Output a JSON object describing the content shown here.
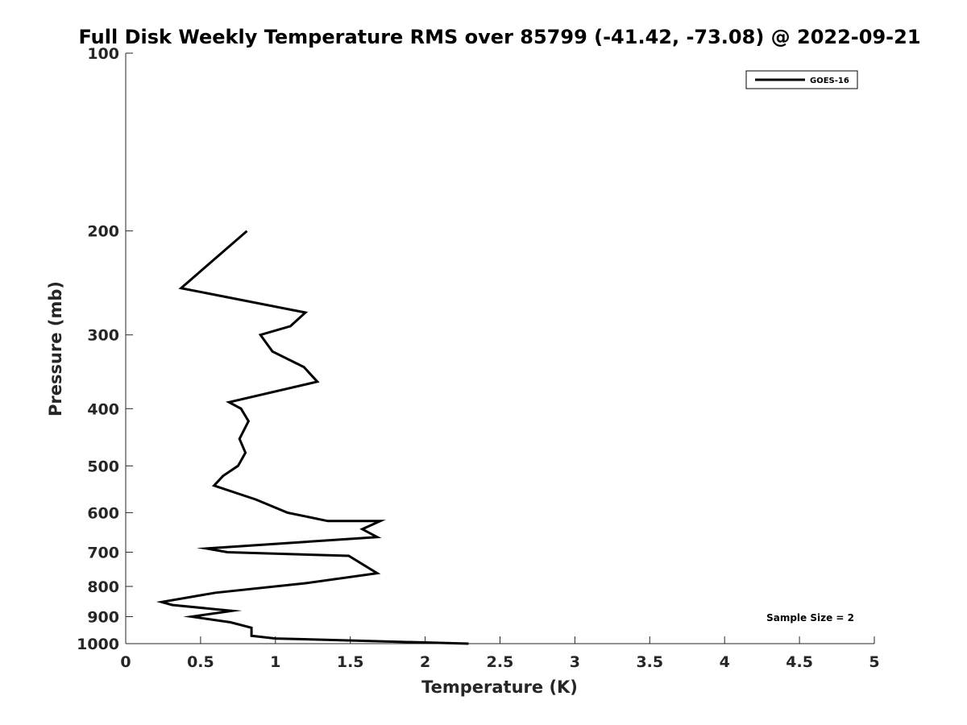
{
  "chart_data": {
    "type": "line",
    "title": "Full Disk Weekly Temperature RMS over 85799 (-41.42, -73.08) @ 2022-09-21",
    "xlabel": "Temperature (K)",
    "ylabel": "Pressure (mb)",
    "xlim": [
      0,
      5
    ],
    "ylim": [
      100,
      1000
    ],
    "y_scale": "log",
    "y_reversed": true,
    "x_ticks": [
      "0",
      "0.5",
      "1",
      "1.5",
      "2",
      "2.5",
      "3",
      "3.5",
      "4",
      "4.5",
      "5"
    ],
    "y_ticks": [
      "100",
      "200",
      "300",
      "400",
      "500",
      "600",
      "700",
      "800",
      "900",
      "1000"
    ],
    "grid": false,
    "legend_position": "top-right",
    "annotation": "Sample Size = 2",
    "series": [
      {
        "name": "GOES-16",
        "color": "#000000",
        "x": [
          0.81,
          0.37,
          1.2,
          1.1,
          0.9,
          0.98,
          1.19,
          1.28,
          0.69,
          0.77,
          0.82,
          0.76,
          0.8,
          0.75,
          0.65,
          0.59,
          0.87,
          1.08,
          1.35,
          1.7,
          1.58,
          1.68,
          0.54,
          0.68,
          1.49,
          1.68,
          1.2,
          0.6,
          0.24,
          0.31,
          0.71,
          0.44,
          0.7,
          0.84,
          0.84,
          1.0,
          2.29
        ],
        "y": [
          200,
          250,
          275,
          290,
          300,
          320,
          340,
          360,
          390,
          400,
          420,
          450,
          475,
          500,
          520,
          540,
          570,
          600,
          620,
          620,
          640,
          660,
          690,
          700,
          710,
          760,
          790,
          820,
          850,
          860,
          880,
          900,
          920,
          940,
          970,
          980,
          1000
        ]
      }
    ]
  }
}
